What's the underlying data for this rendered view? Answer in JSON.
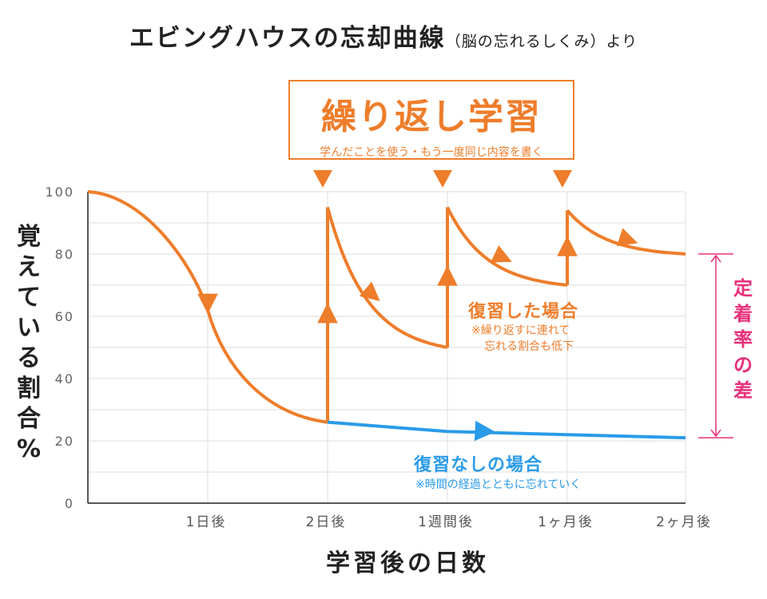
{
  "title": {
    "main": "エビングハウスの忘却曲線",
    "sub": "（脳の忘れるしくみ）より"
  },
  "callout": {
    "heading": "繰り返し学習",
    "note": "学んだことを使う・もう一度同じ内容を書く"
  },
  "annotations": {
    "review_title": "復習した場合",
    "review_note_1": "※繰り返すに連れて",
    "review_note_2": "忘れる割合も低下",
    "noreview_title": "復習なしの場合",
    "noreview_note": "※時間の経過とともに忘れていく",
    "gap_label": [
      "定",
      "着",
      "率",
      "の",
      "差"
    ]
  },
  "colors": {
    "orange": "#ee7d2b",
    "blue": "#2a9be8",
    "pink": "#e8307a",
    "grid": "#dddddd"
  },
  "chart_data": {
    "type": "line",
    "title": "エビングハウスの忘却曲線（脳の忘れるしくみ）より",
    "xlabel": "学習後の日数",
    "ylabel": "覚えている割合％",
    "ylabel_chars": [
      "覚",
      "え",
      "て",
      "い",
      "る",
      "割",
      "合",
      "%"
    ],
    "ylim": [
      0,
      100
    ],
    "y_ticks": [
      0,
      20,
      40,
      60,
      80,
      100
    ],
    "x_ticks": [
      "1日後",
      "2日後",
      "1週間後",
      "1ヶ月後",
      "2ヶ月後"
    ],
    "grid": true,
    "series": [
      {
        "name": "復習した場合",
        "color": "#ee7d2b",
        "points": [
          [
            "start",
            100
          ],
          [
            "1日後",
            62
          ],
          [
            "2日後",
            26
          ],
          [
            "2日後",
            95
          ],
          [
            "1週間後",
            50
          ],
          [
            "1週間後",
            95
          ],
          [
            "1ヶ月後",
            70
          ],
          [
            "1ヶ月後",
            94
          ],
          [
            "2ヶ月後",
            80
          ]
        ]
      },
      {
        "name": "復習なしの場合",
        "color": "#2a9be8",
        "points": [
          [
            "2日後",
            26
          ],
          [
            "1週間後",
            23
          ],
          [
            "1ヶ月後",
            22
          ],
          [
            "2ヶ月後",
            21
          ]
        ]
      }
    ],
    "review_markers": [
      "2日後",
      "1週間後",
      "1ヶ月後"
    ],
    "gap_range": [
      21,
      80
    ]
  }
}
